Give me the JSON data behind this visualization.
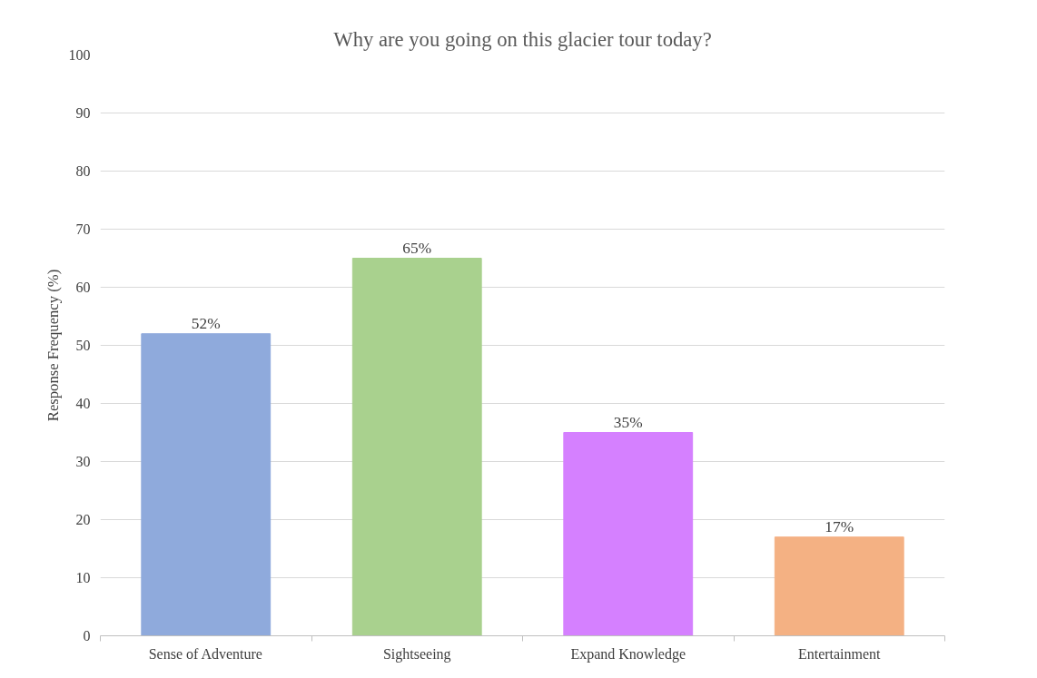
{
  "chart_data": {
    "type": "bar",
    "title": "Why are you going on this glacier tour today?",
    "ylabel": "Response Frequency (%)",
    "categories": [
      "Sense of Adventure",
      "Sightseeing",
      "Expand Knowledge",
      "Entertainment"
    ],
    "values": [
      52,
      65,
      35,
      17
    ],
    "colors": [
      "#8faadc",
      "#a9d18e",
      "#d580ff",
      "#f4b183"
    ],
    "value_labels": [
      "52%",
      "65%",
      "35%",
      "17%"
    ],
    "ylim": [
      0,
      100
    ],
    "yticks": [
      0,
      10,
      20,
      30,
      40,
      50,
      60,
      70,
      80,
      90,
      100
    ],
    "grid": "y"
  }
}
